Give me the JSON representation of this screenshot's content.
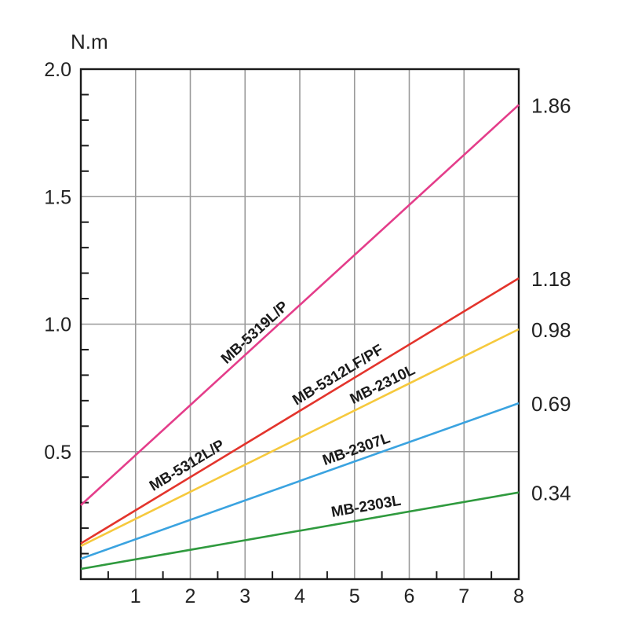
{
  "chart_data": {
    "type": "line",
    "title": "",
    "ylabel": "N.m",
    "xlabel": "",
    "xlim": [
      0,
      8
    ],
    "ylim": [
      0,
      2.0
    ],
    "x_ticks": [
      "1",
      "2",
      "3",
      "4",
      "5",
      "6",
      "7",
      "8"
    ],
    "y_tick_labels": [
      "0.5",
      "1.0",
      "1.5",
      "2.0"
    ],
    "grid": true,
    "series": [
      {
        "name": "MB-5319L/P",
        "x": [
          0,
          8
        ],
        "y": [
          0.29,
          1.86
        ],
        "end_label": "1.86",
        "color": "#e43d8a"
      },
      {
        "name": "MB-5312LF/PF",
        "x": [
          0,
          8
        ],
        "y": [
          0.14,
          1.18
        ],
        "end_label": "1.18",
        "color": "#e3342c"
      },
      {
        "name": "MB-2310L",
        "x": [
          0,
          8
        ],
        "y": [
          0.13,
          0.98
        ],
        "end_label": "0.98",
        "color": "#f6c93d"
      },
      {
        "name": "MB-2307L",
        "x": [
          0,
          8
        ],
        "y": [
          0.08,
          0.69
        ],
        "end_label": "0.69",
        "color": "#3aa3e0"
      },
      {
        "name": "MB-2303L",
        "x": [
          0,
          8
        ],
        "y": [
          0.04,
          0.34
        ],
        "end_label": "0.34",
        "color": "#2f9a3e"
      }
    ],
    "annotations": [
      {
        "text": "MB-5319L/P",
        "series": 0
      },
      {
        "text": "MB-5312L/P",
        "series": 1
      },
      {
        "text": "MB-5312LF/PF",
        "series": 1
      },
      {
        "text": "MB-2310L",
        "series": 2
      },
      {
        "text": "MB-2307L",
        "series": 3
      },
      {
        "text": "MB-2303L",
        "series": 4
      }
    ]
  }
}
